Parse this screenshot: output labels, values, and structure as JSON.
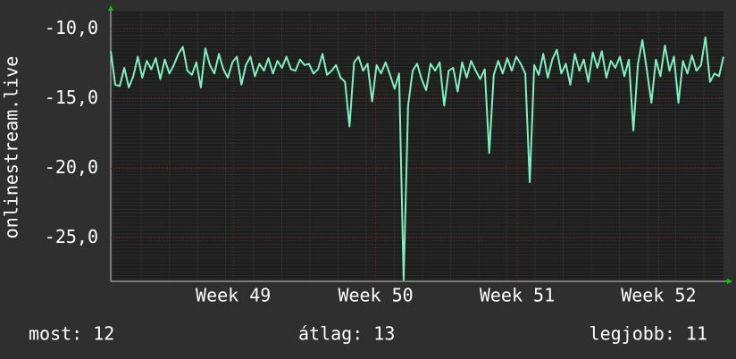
{
  "chart_data": {
    "type": "line",
    "ylabel": "onlinestream.live",
    "color": "#7ff0bf",
    "values": [
      -11.6,
      -14.0,
      -14.1,
      -12.8,
      -14.2,
      -13.4,
      -12.0,
      -13.5,
      -12.3,
      -12.9,
      -12.1,
      -13.6,
      -12.2,
      -13.2,
      -12.6,
      -11.8,
      -11.3,
      -13.0,
      -13.3,
      -12.4,
      -14.2,
      -11.4,
      -12.6,
      -13.2,
      -11.8,
      -12.9,
      -13.5,
      -12.4,
      -12.0,
      -14.0,
      -12.6,
      -12.0,
      -13.4,
      -12.5,
      -13.0,
      -12.1,
      -13.2,
      -12.3,
      -12.8,
      -12.0,
      -12.9,
      -13.0,
      -12.2,
      -12.6,
      -12.5,
      -13.2,
      -12.9,
      -11.8,
      -13.3,
      -13.0,
      -12.6,
      -13.5,
      -13.8,
      -17.0,
      -12.4,
      -12.0,
      -13.0,
      -12.5,
      -15.2,
      -12.6,
      -13.2,
      -12.4,
      -13.3,
      -14.3,
      -13.2,
      -28.0,
      -15.5,
      -13.0,
      -12.5,
      -13.6,
      -14.4,
      -12.5,
      -13.0,
      -12.4,
      -15.5,
      -13.0,
      -12.8,
      -14.5,
      -12.4,
      -13.5,
      -12.3,
      -13.0,
      -13.6,
      -12.9,
      -18.9,
      -13.3,
      -12.3,
      -13.2,
      -12.1,
      -13.0,
      -12.0,
      -12.5,
      -13.2,
      -21.0,
      -12.6,
      -13.3,
      -11.8,
      -13.5,
      -12.2,
      -11.5,
      -13.2,
      -12.5,
      -14.0,
      -11.8,
      -13.0,
      -12.2,
      -13.8,
      -11.7,
      -12.8,
      -11.6,
      -13.5,
      -12.3,
      -12.8,
      -12.0,
      -13.4,
      -12.2,
      -17.3,
      -12.5,
      -10.8,
      -13.0,
      -15.3,
      -12.2,
      -13.4,
      -11.2,
      -13.0,
      -12.0,
      -15.3,
      -12.3,
      -13.2,
      -11.9,
      -13.0,
      -12.6,
      -10.6,
      -13.8,
      -13.2,
      -13.4,
      -12.0
    ],
    "xlim": [
      0,
      136
    ],
    "xticks": [
      {
        "value": 27.2,
        "label": "Week 49"
      },
      {
        "value": 58.8,
        "label": "Week 50"
      },
      {
        "value": 90.2,
        "label": "Week 51"
      },
      {
        "value": 121.6,
        "label": "Week 52"
      }
    ],
    "ylim": [
      -28.1,
      -8.7
    ],
    "yticks": [
      {
        "value": -10,
        "label": "-10,0"
      },
      {
        "value": -15,
        "label": "-15,0"
      },
      {
        "value": -20,
        "label": "-20,0"
      },
      {
        "value": -25,
        "label": "-25,0"
      }
    ],
    "grid": true,
    "annotations": [
      "most: 12",
      "átlag: 13",
      "legjobb: 11"
    ]
  }
}
